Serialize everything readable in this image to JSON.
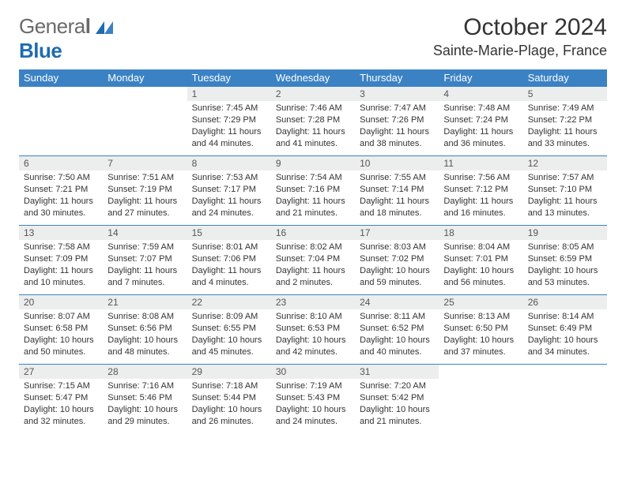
{
  "brand": {
    "word1": "Genera",
    "word1_last": "l",
    "word2": "Blue"
  },
  "colors": {
    "header_bg": "#3b82c4",
    "header_text": "#ffffff",
    "daynum_bg": "#eceded",
    "text": "#333333",
    "logo_gray": "#6a6a6a",
    "logo_blue": "#1f6bb0",
    "row_border": "#3b82c4",
    "background": "#ffffff"
  },
  "title": "October 2024",
  "location": "Sainte-Marie-Plage, France",
  "days_of_week": [
    "Sunday",
    "Monday",
    "Tuesday",
    "Wednesday",
    "Thursday",
    "Friday",
    "Saturday"
  ],
  "font": {
    "family": "Arial",
    "header_size_pt": 10,
    "title_size_pt": 22,
    "location_size_pt": 14,
    "cell_size_pt": 8
  },
  "grid": {
    "rows": 5,
    "cols": 7,
    "cells": [
      [
        null,
        null,
        {
          "n": "1",
          "sr": "Sunrise: 7:45 AM",
          "ss": "Sunset: 7:29 PM",
          "dl1": "Daylight: 11 hours",
          "dl2": "and 44 minutes."
        },
        {
          "n": "2",
          "sr": "Sunrise: 7:46 AM",
          "ss": "Sunset: 7:28 PM",
          "dl1": "Daylight: 11 hours",
          "dl2": "and 41 minutes."
        },
        {
          "n": "3",
          "sr": "Sunrise: 7:47 AM",
          "ss": "Sunset: 7:26 PM",
          "dl1": "Daylight: 11 hours",
          "dl2": "and 38 minutes."
        },
        {
          "n": "4",
          "sr": "Sunrise: 7:48 AM",
          "ss": "Sunset: 7:24 PM",
          "dl1": "Daylight: 11 hours",
          "dl2": "and 36 minutes."
        },
        {
          "n": "5",
          "sr": "Sunrise: 7:49 AM",
          "ss": "Sunset: 7:22 PM",
          "dl1": "Daylight: 11 hours",
          "dl2": "and 33 minutes."
        }
      ],
      [
        {
          "n": "6",
          "sr": "Sunrise: 7:50 AM",
          "ss": "Sunset: 7:21 PM",
          "dl1": "Daylight: 11 hours",
          "dl2": "and 30 minutes."
        },
        {
          "n": "7",
          "sr": "Sunrise: 7:51 AM",
          "ss": "Sunset: 7:19 PM",
          "dl1": "Daylight: 11 hours",
          "dl2": "and 27 minutes."
        },
        {
          "n": "8",
          "sr": "Sunrise: 7:53 AM",
          "ss": "Sunset: 7:17 PM",
          "dl1": "Daylight: 11 hours",
          "dl2": "and 24 minutes."
        },
        {
          "n": "9",
          "sr": "Sunrise: 7:54 AM",
          "ss": "Sunset: 7:16 PM",
          "dl1": "Daylight: 11 hours",
          "dl2": "and 21 minutes."
        },
        {
          "n": "10",
          "sr": "Sunrise: 7:55 AM",
          "ss": "Sunset: 7:14 PM",
          "dl1": "Daylight: 11 hours",
          "dl2": "and 18 minutes."
        },
        {
          "n": "11",
          "sr": "Sunrise: 7:56 AM",
          "ss": "Sunset: 7:12 PM",
          "dl1": "Daylight: 11 hours",
          "dl2": "and 16 minutes."
        },
        {
          "n": "12",
          "sr": "Sunrise: 7:57 AM",
          "ss": "Sunset: 7:10 PM",
          "dl1": "Daylight: 11 hours",
          "dl2": "and 13 minutes."
        }
      ],
      [
        {
          "n": "13",
          "sr": "Sunrise: 7:58 AM",
          "ss": "Sunset: 7:09 PM",
          "dl1": "Daylight: 11 hours",
          "dl2": "and 10 minutes."
        },
        {
          "n": "14",
          "sr": "Sunrise: 7:59 AM",
          "ss": "Sunset: 7:07 PM",
          "dl1": "Daylight: 11 hours",
          "dl2": "and 7 minutes."
        },
        {
          "n": "15",
          "sr": "Sunrise: 8:01 AM",
          "ss": "Sunset: 7:06 PM",
          "dl1": "Daylight: 11 hours",
          "dl2": "and 4 minutes."
        },
        {
          "n": "16",
          "sr": "Sunrise: 8:02 AM",
          "ss": "Sunset: 7:04 PM",
          "dl1": "Daylight: 11 hours",
          "dl2": "and 2 minutes."
        },
        {
          "n": "17",
          "sr": "Sunrise: 8:03 AM",
          "ss": "Sunset: 7:02 PM",
          "dl1": "Daylight: 10 hours",
          "dl2": "and 59 minutes."
        },
        {
          "n": "18",
          "sr": "Sunrise: 8:04 AM",
          "ss": "Sunset: 7:01 PM",
          "dl1": "Daylight: 10 hours",
          "dl2": "and 56 minutes."
        },
        {
          "n": "19",
          "sr": "Sunrise: 8:05 AM",
          "ss": "Sunset: 6:59 PM",
          "dl1": "Daylight: 10 hours",
          "dl2": "and 53 minutes."
        }
      ],
      [
        {
          "n": "20",
          "sr": "Sunrise: 8:07 AM",
          "ss": "Sunset: 6:58 PM",
          "dl1": "Daylight: 10 hours",
          "dl2": "and 50 minutes."
        },
        {
          "n": "21",
          "sr": "Sunrise: 8:08 AM",
          "ss": "Sunset: 6:56 PM",
          "dl1": "Daylight: 10 hours",
          "dl2": "and 48 minutes."
        },
        {
          "n": "22",
          "sr": "Sunrise: 8:09 AM",
          "ss": "Sunset: 6:55 PM",
          "dl1": "Daylight: 10 hours",
          "dl2": "and 45 minutes."
        },
        {
          "n": "23",
          "sr": "Sunrise: 8:10 AM",
          "ss": "Sunset: 6:53 PM",
          "dl1": "Daylight: 10 hours",
          "dl2": "and 42 minutes."
        },
        {
          "n": "24",
          "sr": "Sunrise: 8:11 AM",
          "ss": "Sunset: 6:52 PM",
          "dl1": "Daylight: 10 hours",
          "dl2": "and 40 minutes."
        },
        {
          "n": "25",
          "sr": "Sunrise: 8:13 AM",
          "ss": "Sunset: 6:50 PM",
          "dl1": "Daylight: 10 hours",
          "dl2": "and 37 minutes."
        },
        {
          "n": "26",
          "sr": "Sunrise: 8:14 AM",
          "ss": "Sunset: 6:49 PM",
          "dl1": "Daylight: 10 hours",
          "dl2": "and 34 minutes."
        }
      ],
      [
        {
          "n": "27",
          "sr": "Sunrise: 7:15 AM",
          "ss": "Sunset: 5:47 PM",
          "dl1": "Daylight: 10 hours",
          "dl2": "and 32 minutes."
        },
        {
          "n": "28",
          "sr": "Sunrise: 7:16 AM",
          "ss": "Sunset: 5:46 PM",
          "dl1": "Daylight: 10 hours",
          "dl2": "and 29 minutes."
        },
        {
          "n": "29",
          "sr": "Sunrise: 7:18 AM",
          "ss": "Sunset: 5:44 PM",
          "dl1": "Daylight: 10 hours",
          "dl2": "and 26 minutes."
        },
        {
          "n": "30",
          "sr": "Sunrise: 7:19 AM",
          "ss": "Sunset: 5:43 PM",
          "dl1": "Daylight: 10 hours",
          "dl2": "and 24 minutes."
        },
        {
          "n": "31",
          "sr": "Sunrise: 7:20 AM",
          "ss": "Sunset: 5:42 PM",
          "dl1": "Daylight: 10 hours",
          "dl2": "and 21 minutes."
        },
        null,
        null
      ]
    ]
  }
}
